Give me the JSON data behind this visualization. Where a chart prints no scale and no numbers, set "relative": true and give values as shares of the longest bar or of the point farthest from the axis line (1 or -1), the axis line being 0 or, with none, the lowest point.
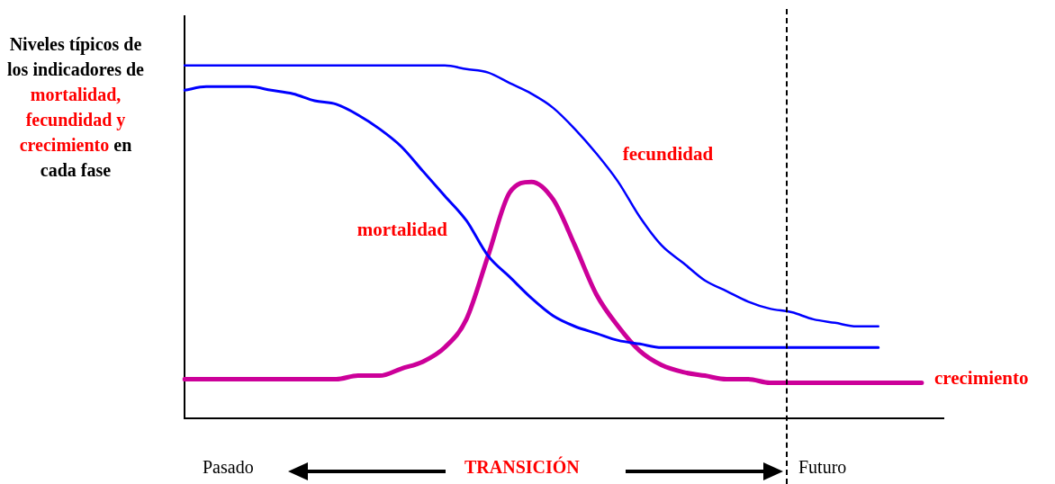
{
  "chart_data": {
    "type": "line",
    "relative": true,
    "legend": false,
    "grid": false,
    "marker": "none",
    "line_style": "solid",
    "ylabel": "Niveles típicos de los indicadores de mortalidad, fecundidad y crecimiento en cada fase",
    "categories": [
      null,
      null,
      null,
      null,
      null,
      null,
      null,
      null,
      null,
      null,
      null,
      null,
      null,
      null,
      null,
      null,
      null,
      null,
      null,
      null,
      null,
      null,
      null,
      null,
      null,
      null,
      null,
      null,
      null,
      null,
      null,
      null,
      null,
      null,
      null,
      null
    ],
    "series": [
      {
        "name": "fecundidad",
        "color": "#0000ff",
        "values": [
          1.0,
          1.0,
          1.0,
          1.0,
          1.0,
          1.0,
          1.0,
          1.0,
          1.0,
          1.0,
          1.0,
          1.0,
          1.0,
          0.99,
          0.98,
          0.95,
          0.92,
          0.88,
          0.82,
          0.75,
          0.67,
          0.57,
          0.49,
          0.44,
          0.39,
          0.36,
          0.33,
          0.31,
          0.3,
          0.28,
          0.27,
          0.26,
          0.26,
          null,
          null,
          null
        ]
      },
      {
        "name": "mortalidad",
        "color": "#0000ff",
        "values": [
          0.93,
          0.94,
          0.94,
          0.94,
          0.93,
          0.92,
          0.9,
          0.89,
          0.86,
          0.82,
          0.77,
          0.7,
          0.63,
          0.56,
          0.46,
          0.4,
          0.34,
          0.29,
          0.26,
          0.24,
          0.22,
          0.21,
          0.2,
          0.2,
          0.2,
          0.2,
          0.2,
          0.2,
          0.2,
          0.2,
          0.2,
          0.2,
          0.2,
          null,
          null,
          null
        ]
      },
      {
        "name": "crecimiento",
        "color": "#cc0099",
        "values": [
          0.11,
          0.11,
          0.11,
          0.11,
          0.11,
          0.11,
          0.11,
          0.11,
          0.12,
          0.12,
          0.14,
          0.16,
          0.2,
          0.28,
          0.46,
          0.64,
          0.67,
          0.62,
          0.49,
          0.35,
          0.26,
          0.19,
          0.15,
          0.13,
          0.12,
          0.11,
          0.11,
          0.1,
          0.1,
          0.1,
          0.1,
          0.1,
          0.1,
          0.1,
          0.1,
          null
        ]
      }
    ],
    "annotations": [
      "Pasado",
      "TRANSICIÓN",
      "Futuro"
    ]
  }
}
